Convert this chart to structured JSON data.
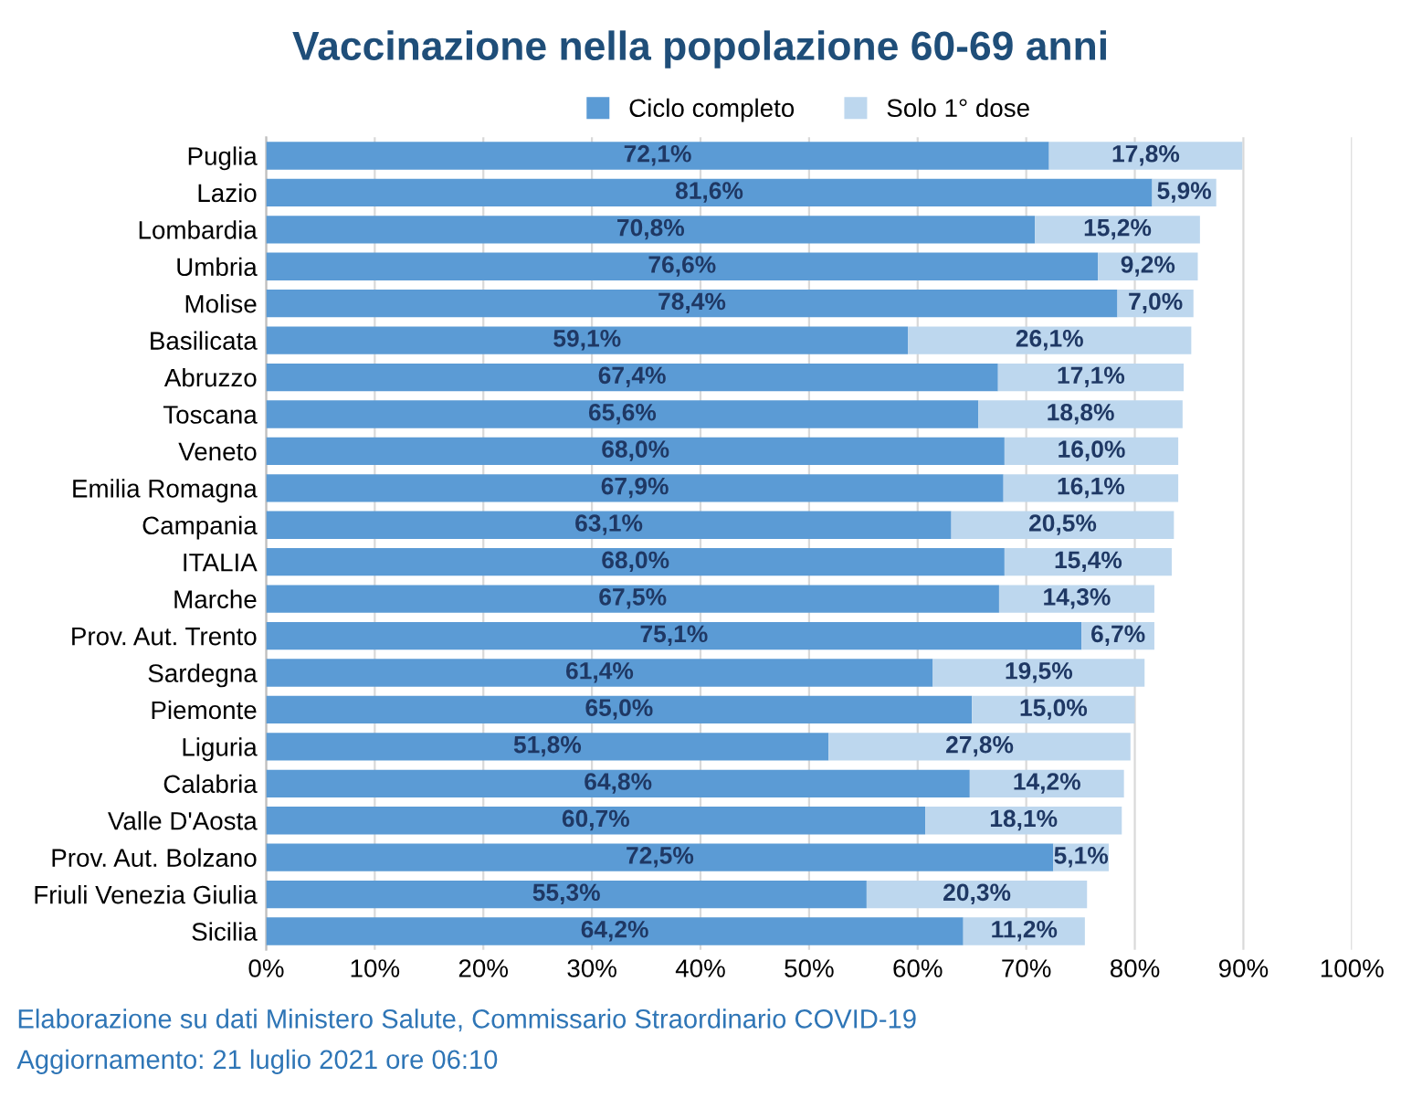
{
  "chart_data": {
    "type": "bar",
    "orientation": "horizontal",
    "stacked": true,
    "title": "Vaccinazione nella popolazione 60-69 anni",
    "categories": [
      "Puglia",
      "Lazio",
      "Lombardia",
      "Umbria",
      "Molise",
      "Basilicata",
      "Abruzzo",
      "Toscana",
      "Veneto",
      "Emilia Romagna",
      "Campania",
      "ITALIA",
      "Marche",
      "Prov. Aut. Trento",
      "Sardegna",
      "Piemonte",
      "Liguria",
      "Calabria",
      "Valle D'Aosta",
      "Prov. Aut. Bolzano",
      "Friuli Venezia Giulia",
      "Sicilia"
    ],
    "series": [
      {
        "name": "Ciclo completo",
        "color": "#5b9bd5",
        "values": [
          72.1,
          81.6,
          70.8,
          76.6,
          78.4,
          59.1,
          67.4,
          65.6,
          68.0,
          67.9,
          63.1,
          68.0,
          67.5,
          75.1,
          61.4,
          65.0,
          51.8,
          64.8,
          60.7,
          72.5,
          55.3,
          64.2
        ],
        "value_labels": [
          "72,1%",
          "81,6%",
          "70,8%",
          "76,6%",
          "78,4%",
          "59,1%",
          "67,4%",
          "65,6%",
          "68,0%",
          "67,9%",
          "63,1%",
          "68,0%",
          "67,5%",
          "75,1%",
          "61,4%",
          "65,0%",
          "51,8%",
          "64,8%",
          "60,7%",
          "72,5%",
          "55,3%",
          "64,2%"
        ]
      },
      {
        "name": "Solo 1° dose",
        "color": "#bdd7ee",
        "values": [
          17.8,
          5.9,
          15.2,
          9.2,
          7.0,
          26.1,
          17.1,
          18.8,
          16.0,
          16.1,
          20.5,
          15.4,
          14.3,
          6.7,
          19.5,
          15.0,
          27.8,
          14.2,
          18.1,
          5.1,
          20.3,
          11.2
        ],
        "value_labels": [
          "17,8%",
          "5,9%",
          "15,2%",
          "9,2%",
          "7,0%",
          "26,1%",
          "17,1%",
          "18,8%",
          "16,0%",
          "16,1%",
          "20,5%",
          "15,4%",
          "14,3%",
          "6,7%",
          "19,5%",
          "15,0%",
          "27,8%",
          "14,2%",
          "18,1%",
          "5,1%",
          "20,3%",
          "11,2%"
        ]
      }
    ],
    "xlim": [
      0,
      100
    ],
    "xticks": [
      {
        "value": 0,
        "label": "0%"
      },
      {
        "value": 10,
        "label": "10%"
      },
      {
        "value": 20,
        "label": "20%"
      },
      {
        "value": 30,
        "label": "30%"
      },
      {
        "value": 40,
        "label": "40%"
      },
      {
        "value": 50,
        "label": "50%"
      },
      {
        "value": 60,
        "label": "60%"
      },
      {
        "value": 70,
        "label": "70%"
      },
      {
        "value": 80,
        "label": "80%"
      },
      {
        "value": 90,
        "label": "90%"
      },
      {
        "value": 100,
        "label": "100%"
      }
    ],
    "grid": "x",
    "legend": "top",
    "annotations": [
      "Elaborazione su dati Ministero Salute, Commissario Straordinario COVID-19",
      "Aggiornamento: 21 luglio 2021 ore 06:10"
    ]
  }
}
